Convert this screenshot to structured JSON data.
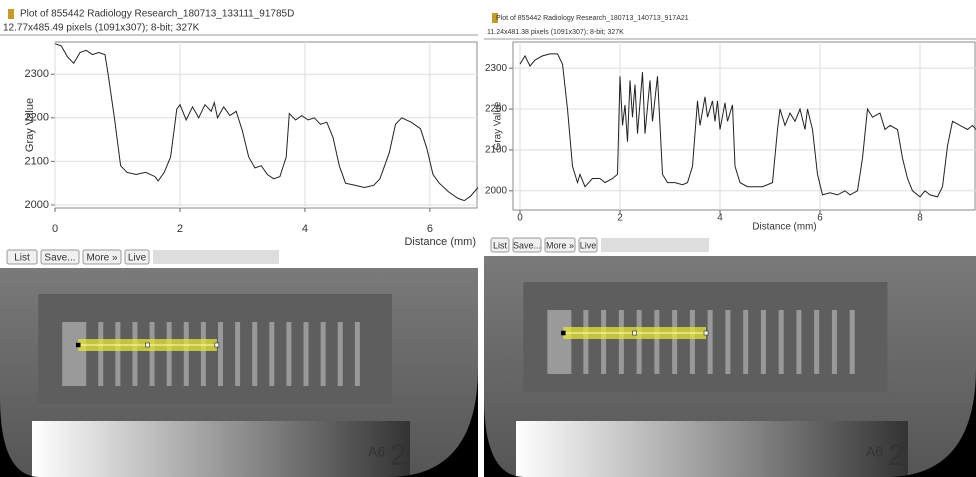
{
  "chart_data": [
    {
      "type": "line",
      "title": "Plot of 855442 Radiology Research_180713_133111_91785D",
      "subtitle": "12.77x485.49 pixels (1091x307); 8-bit; 327K",
      "x_label": "Distance (mm)",
      "y_label": "Gray Value",
      "xlim": [
        0,
        6.77
      ],
      "ylim": [
        1993,
        2374
      ],
      "xticks": [
        0,
        2,
        4,
        6
      ],
      "yticks": [
        2000,
        2100,
        2200,
        2300
      ],
      "grid": true,
      "series": [
        {
          "color": "#222222",
          "x": [
            0,
            0.1,
            0.2,
            0.3,
            0.4,
            0.5,
            0.6,
            0.7,
            0.8,
            0.85,
            0.95,
            1.05,
            1.15,
            1.3,
            1.45,
            1.6,
            1.65,
            1.75,
            1.85,
            1.95,
            2.0,
            2.1,
            2.2,
            2.3,
            2.4,
            2.5,
            2.55,
            2.6,
            2.7,
            2.8,
            2.9,
            3.0,
            3.1,
            3.2,
            3.3,
            3.4,
            3.5,
            3.6,
            3.7,
            3.75,
            3.85,
            3.95,
            4.05,
            4.15,
            4.25,
            4.35,
            4.45,
            4.55,
            4.65,
            4.8,
            4.95,
            5.1,
            5.2,
            5.35,
            5.45,
            5.55,
            5.7,
            5.85,
            5.95,
            6.05,
            6.15,
            6.3,
            6.45,
            6.55,
            6.65,
            6.77
          ],
          "values": [
            2370,
            2365,
            2340,
            2325,
            2350,
            2355,
            2345,
            2350,
            2345,
            2300,
            2200,
            2090,
            2075,
            2070,
            2075,
            2065,
            2055,
            2075,
            2110,
            2220,
            2230,
            2195,
            2225,
            2200,
            2230,
            2215,
            2235,
            2200,
            2225,
            2205,
            2215,
            2170,
            2110,
            2085,
            2090,
            2070,
            2060,
            2065,
            2110,
            2210,
            2195,
            2205,
            2195,
            2200,
            2185,
            2190,
            2155,
            2090,
            2050,
            2045,
            2040,
            2045,
            2060,
            2120,
            2185,
            2200,
            2190,
            2175,
            2130,
            2070,
            2050,
            2030,
            2015,
            2010,
            2020,
            2040
          ]
        }
      ]
    },
    {
      "type": "line",
      "title": "Plot of 855442 Radiology Research_180713_140713_917A21",
      "subtitle": "11.24x481.38 pixels (1091x307); 8-bit; 327K",
      "x_label": "Distance (mm)",
      "y_label": "Gray Value",
      "xlim": [
        -0.14,
        9.12
      ],
      "ylim": [
        1953,
        2364
      ],
      "xticks": [
        0,
        2,
        4,
        6,
        8
      ],
      "yticks": [
        2000,
        2100,
        2200,
        2300
      ],
      "grid": true,
      "series": [
        {
          "color": "#222222",
          "x": [
            0.0,
            0.1,
            0.2,
            0.3,
            0.45,
            0.6,
            0.75,
            0.85,
            0.95,
            1.05,
            1.15,
            1.2,
            1.3,
            1.45,
            1.6,
            1.7,
            1.85,
            1.95,
            2.0,
            2.05,
            2.1,
            2.15,
            2.2,
            2.25,
            2.3,
            2.35,
            2.45,
            2.5,
            2.6,
            2.65,
            2.75,
            2.85,
            2.95,
            3.1,
            3.25,
            3.35,
            3.45,
            3.55,
            3.6,
            3.7,
            3.75,
            3.85,
            3.9,
            3.95,
            4.0,
            4.1,
            4.15,
            4.25,
            4.3,
            4.4,
            4.55,
            4.7,
            4.85,
            5.05,
            5.15,
            5.2,
            5.3,
            5.4,
            5.5,
            5.6,
            5.7,
            5.75,
            5.85,
            5.95,
            6.05,
            6.2,
            6.35,
            6.5,
            6.6,
            6.75,
            6.85,
            6.95,
            7.05,
            7.2,
            7.3,
            7.4,
            7.55,
            7.65,
            7.75,
            7.85,
            8.0,
            8.1,
            8.2,
            8.35,
            8.45,
            8.55,
            8.65,
            8.8,
            8.95,
            9.05,
            9.12
          ],
          "values": [
            2310,
            2330,
            2305,
            2320,
            2330,
            2335,
            2335,
            2310,
            2200,
            2060,
            2020,
            2040,
            2010,
            2030,
            2030,
            2020,
            2030,
            2040,
            2280,
            2160,
            2210,
            2120,
            2270,
            2180,
            2260,
            2140,
            2290,
            2140,
            2270,
            2170,
            2280,
            2040,
            2020,
            2020,
            2015,
            2020,
            2060,
            2220,
            2160,
            2230,
            2180,
            2220,
            2170,
            2220,
            2150,
            2215,
            2170,
            2210,
            2060,
            2020,
            2010,
            2010,
            2010,
            2020,
            2150,
            2200,
            2160,
            2190,
            2170,
            2200,
            2150,
            2200,
            2150,
            2040,
            1990,
            1995,
            1990,
            2000,
            1990,
            2000,
            2080,
            2200,
            2180,
            2190,
            2150,
            2160,
            2150,
            2080,
            2030,
            2000,
            1985,
            2000,
            1990,
            1985,
            2010,
            2110,
            2170,
            2160,
            2150,
            2160,
            2150
          ]
        }
      ]
    }
  ],
  "buttons": [
    "List",
    "Save...",
    "More »",
    "Live"
  ],
  "image_labels": [
    "A6",
    "2"
  ]
}
